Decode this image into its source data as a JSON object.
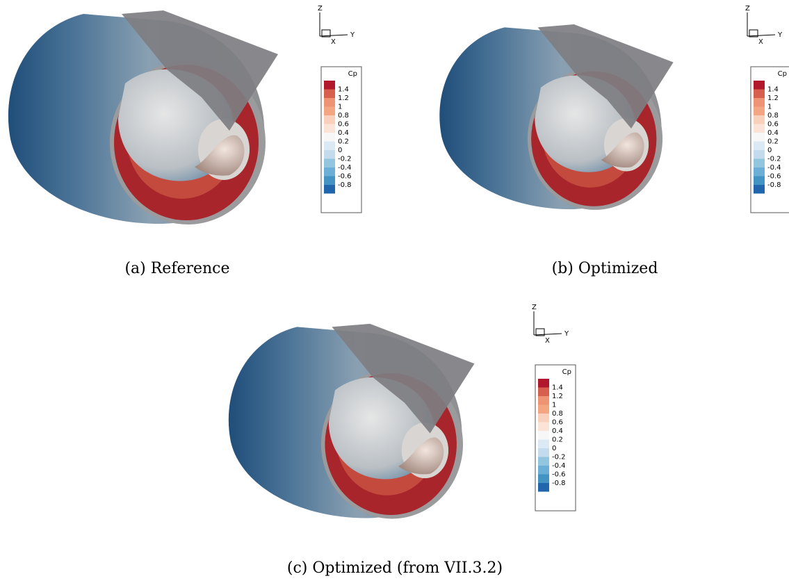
{
  "panels": [
    {
      "caption": "(a) Reference",
      "axes": {
        "z": "Z",
        "y": "Y",
        "x": "X"
      },
      "legend": {
        "title": "Cp",
        "labels": [
          "1.4",
          "1.2",
          "1",
          "0.8",
          "0.6",
          "0.4",
          "0.2",
          "0",
          "-0.2",
          "-0.4",
          "-0.6",
          "-0.8"
        ]
      }
    },
    {
      "caption": "(b) Optimized",
      "axes": {
        "z": "Z",
        "y": "Y",
        "x": "X"
      },
      "legend": {
        "title": "Cp",
        "labels": [
          "1.4",
          "1.2",
          "1",
          "0.8",
          "0.6",
          "0.4",
          "0.2",
          "0",
          "-0.2",
          "-0.4",
          "-0.6",
          "-0.8"
        ]
      }
    },
    {
      "caption": "(c) Optimized (from VII.3.2)",
      "axes": {
        "z": "Z",
        "y": "Y",
        "x": "X"
      },
      "legend": {
        "title": "Cp",
        "labels": [
          "1.4",
          "1.2",
          "1",
          "0.8",
          "0.6",
          "0.4",
          "0.2",
          "0",
          "-0.2",
          "-0.4",
          "-0.6",
          "-0.8"
        ]
      }
    }
  ],
  "legend_colors": [
    "#b2182b",
    "#d6604d",
    "#ee9374",
    "#f4a582",
    "#f9d0bb",
    "#fbe4d7",
    "#f7f7f7",
    "#dbe9f4",
    "#c3dbec",
    "#92c5de",
    "#6baed6",
    "#4393c3",
    "#2166ac"
  ]
}
